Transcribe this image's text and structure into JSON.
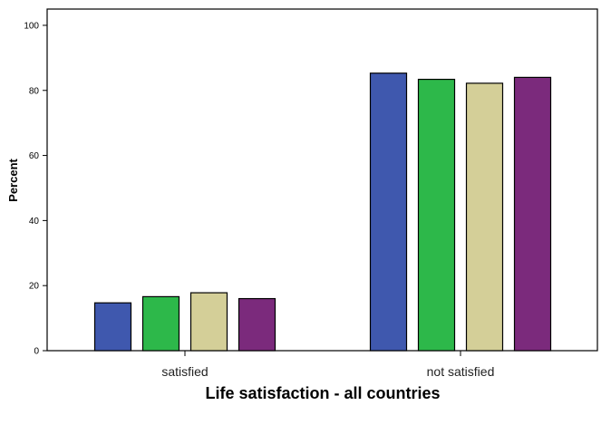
{
  "chart_data": {
    "type": "bar",
    "title": "",
    "xlabel": "Life satisfaction - all countries",
    "ylabel": "Percent",
    "ylim": [
      0,
      105
    ],
    "yticks": [
      0,
      20,
      40,
      60,
      80,
      100
    ],
    "categories": [
      "satisfied",
      "not satisfied"
    ],
    "grid": false,
    "legend": "none",
    "series": [
      {
        "color": "#3f58ae",
        "values": [
          14.7,
          85.3
        ]
      },
      {
        "color": "#2db84a",
        "values": [
          16.6,
          83.4
        ]
      },
      {
        "color": "#d4cf98",
        "values": [
          17.8,
          82.2
        ]
      },
      {
        "color": "#7b2a7c",
        "values": [
          16.0,
          84.0
        ]
      }
    ]
  }
}
